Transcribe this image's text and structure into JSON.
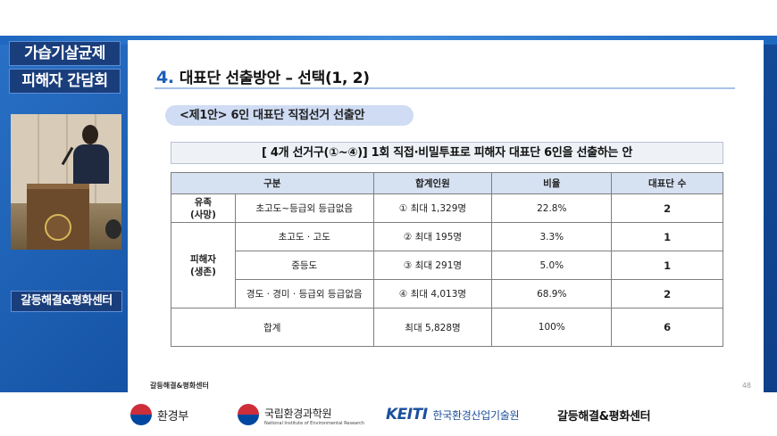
{
  "side": {
    "title_line1": "가습기살균제",
    "title_line2": "피해자 간담회",
    "footer": "갈등해결&평화센터"
  },
  "slide": {
    "section_number": "4.",
    "section_title": "대표단 선출방안 – 선택(1, 2)",
    "proposal_pill": "<제1안> 6인 대표단 직접선거 선출안",
    "subbar": "[ 4개 선거구(①~④)]   1회 직접·비밀투표로 피해자 대표단 6인을 선출하는 안",
    "table": {
      "headers": [
        "구분",
        "합계인원",
        "비율",
        "대표단 수"
      ],
      "group1_label": "유족\n(사망)",
      "group2_label": "피해자\n(생존)",
      "rows": [
        {
          "category": "초고도~등급외 등급없음",
          "people": "① 최대 1,329명",
          "ratio": "22.8%",
          "reps": "2"
        },
        {
          "category": "초고도 · 고도",
          "people": "② 최대 195명",
          "ratio": "3.3%",
          "reps": "1"
        },
        {
          "category": "중등도",
          "people": "③ 최대 291명",
          "ratio": "5.0%",
          "reps": "1"
        },
        {
          "category": "경도 · 경미 · 등급외 등급없음",
          "people": "④ 최대 4,013명",
          "ratio": "68.9%",
          "reps": "2"
        }
      ],
      "total": {
        "label": "합계",
        "people": "최대 5,828명",
        "ratio": "100%",
        "reps": "6"
      }
    },
    "footer_label": "갈등해결&평화센터",
    "page_number": "48"
  },
  "logos": {
    "ministry": "환경부",
    "nier_kr": "국립환경과학원",
    "nier_en": "National Institute of Environmental Research",
    "keiti_mark": "KEITI",
    "keiti_kr": "한국환경산업기술원",
    "center": "갈등해결&평화센터"
  }
}
